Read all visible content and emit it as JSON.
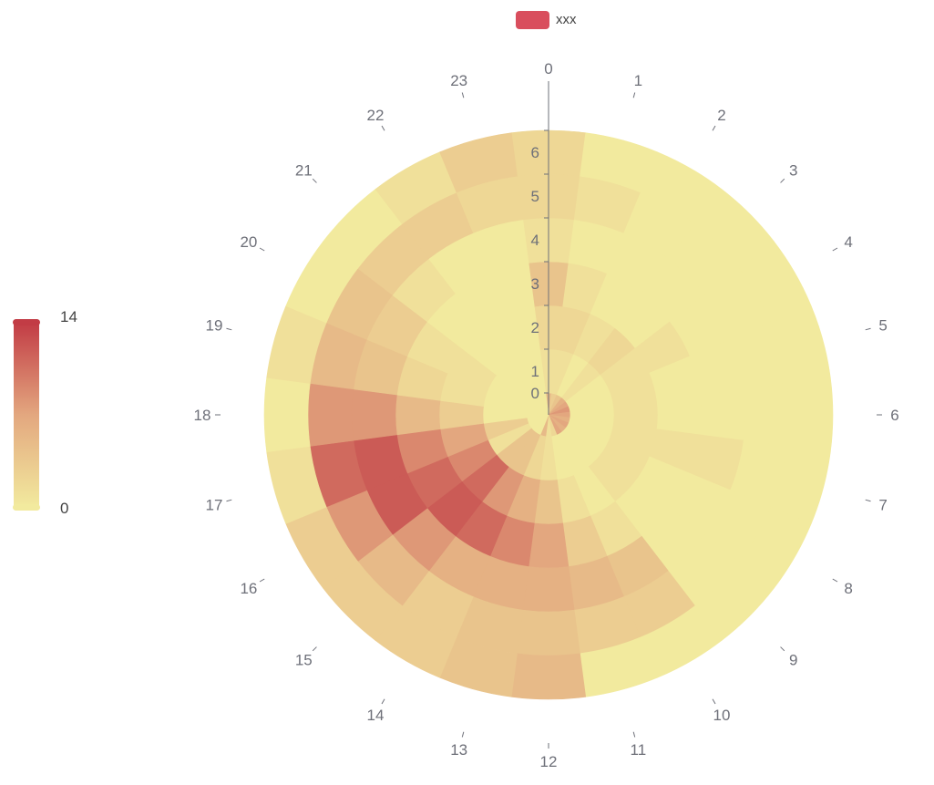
{
  "legend": {
    "label": "xxx",
    "color": "#d94e5d"
  },
  "visual_map": {
    "min_label": "14",
    "max_label": "0",
    "top_text": "14",
    "bottom_text": "0",
    "color_low": "#f2ea9e",
    "color_mid": "#e3a77f",
    "color_high": "#c23c45"
  },
  "chart_data": {
    "type": "heatmap",
    "coordinate_system": "polar",
    "angle_axis": {
      "categories": [
        "0",
        "1",
        "2",
        "3",
        "4",
        "5",
        "6",
        "7",
        "8",
        "9",
        "10",
        "11",
        "12",
        "13",
        "14",
        "15",
        "16",
        "17",
        "18",
        "19",
        "20",
        "21",
        "22",
        "23"
      ]
    },
    "radius_axis": {
      "categories": [
        "0",
        "1",
        "2",
        "3",
        "4",
        "5",
        "6"
      ]
    },
    "value_range": [
      0,
      14
    ],
    "series": [
      {
        "name": "xxx",
        "values": [
          [
            5,
            3,
            4,
            6,
            7,
            8,
            7,
            6,
            7,
            6,
            7,
            2,
            1,
            5,
            0,
            0,
            0,
            0,
            0,
            0,
            0,
            0,
            0,
            0
          ],
          [
            1,
            1,
            0,
            1,
            0,
            0,
            0,
            0,
            0,
            0,
            0,
            0,
            1,
            2,
            4,
            4,
            1,
            3,
            0,
            0,
            0,
            0,
            0,
            0
          ],
          [
            2,
            2,
            1,
            2,
            1,
            1,
            1,
            1,
            1,
            1,
            0,
            1,
            4,
            6,
            8,
            11,
            9,
            7,
            3,
            1,
            1,
            0,
            0,
            0
          ],
          [
            4,
            1,
            0,
            0,
            1,
            0,
            0,
            1,
            0,
            0,
            1,
            3,
            7,
            9,
            11,
            12,
            11,
            9,
            5,
            2,
            1,
            0,
            0,
            0
          ],
          [
            1,
            0,
            0,
            0,
            0,
            0,
            0,
            1,
            0,
            0,
            4,
            5,
            6,
            6,
            6,
            8,
            12,
            12,
            8,
            4,
            3,
            1,
            0,
            0
          ],
          [
            2,
            1,
            0,
            0,
            0,
            0,
            0,
            0,
            0,
            0,
            3,
            3,
            4,
            4,
            3,
            5,
            8,
            11,
            8,
            5,
            4,
            3,
            3,
            2
          ],
          [
            2,
            0,
            0,
            0,
            0,
            0,
            0,
            0,
            0,
            0,
            0,
            0,
            5,
            4,
            3,
            3,
            3,
            1,
            0,
            1,
            0,
            0,
            1,
            3
          ]
        ]
      }
    ]
  }
}
